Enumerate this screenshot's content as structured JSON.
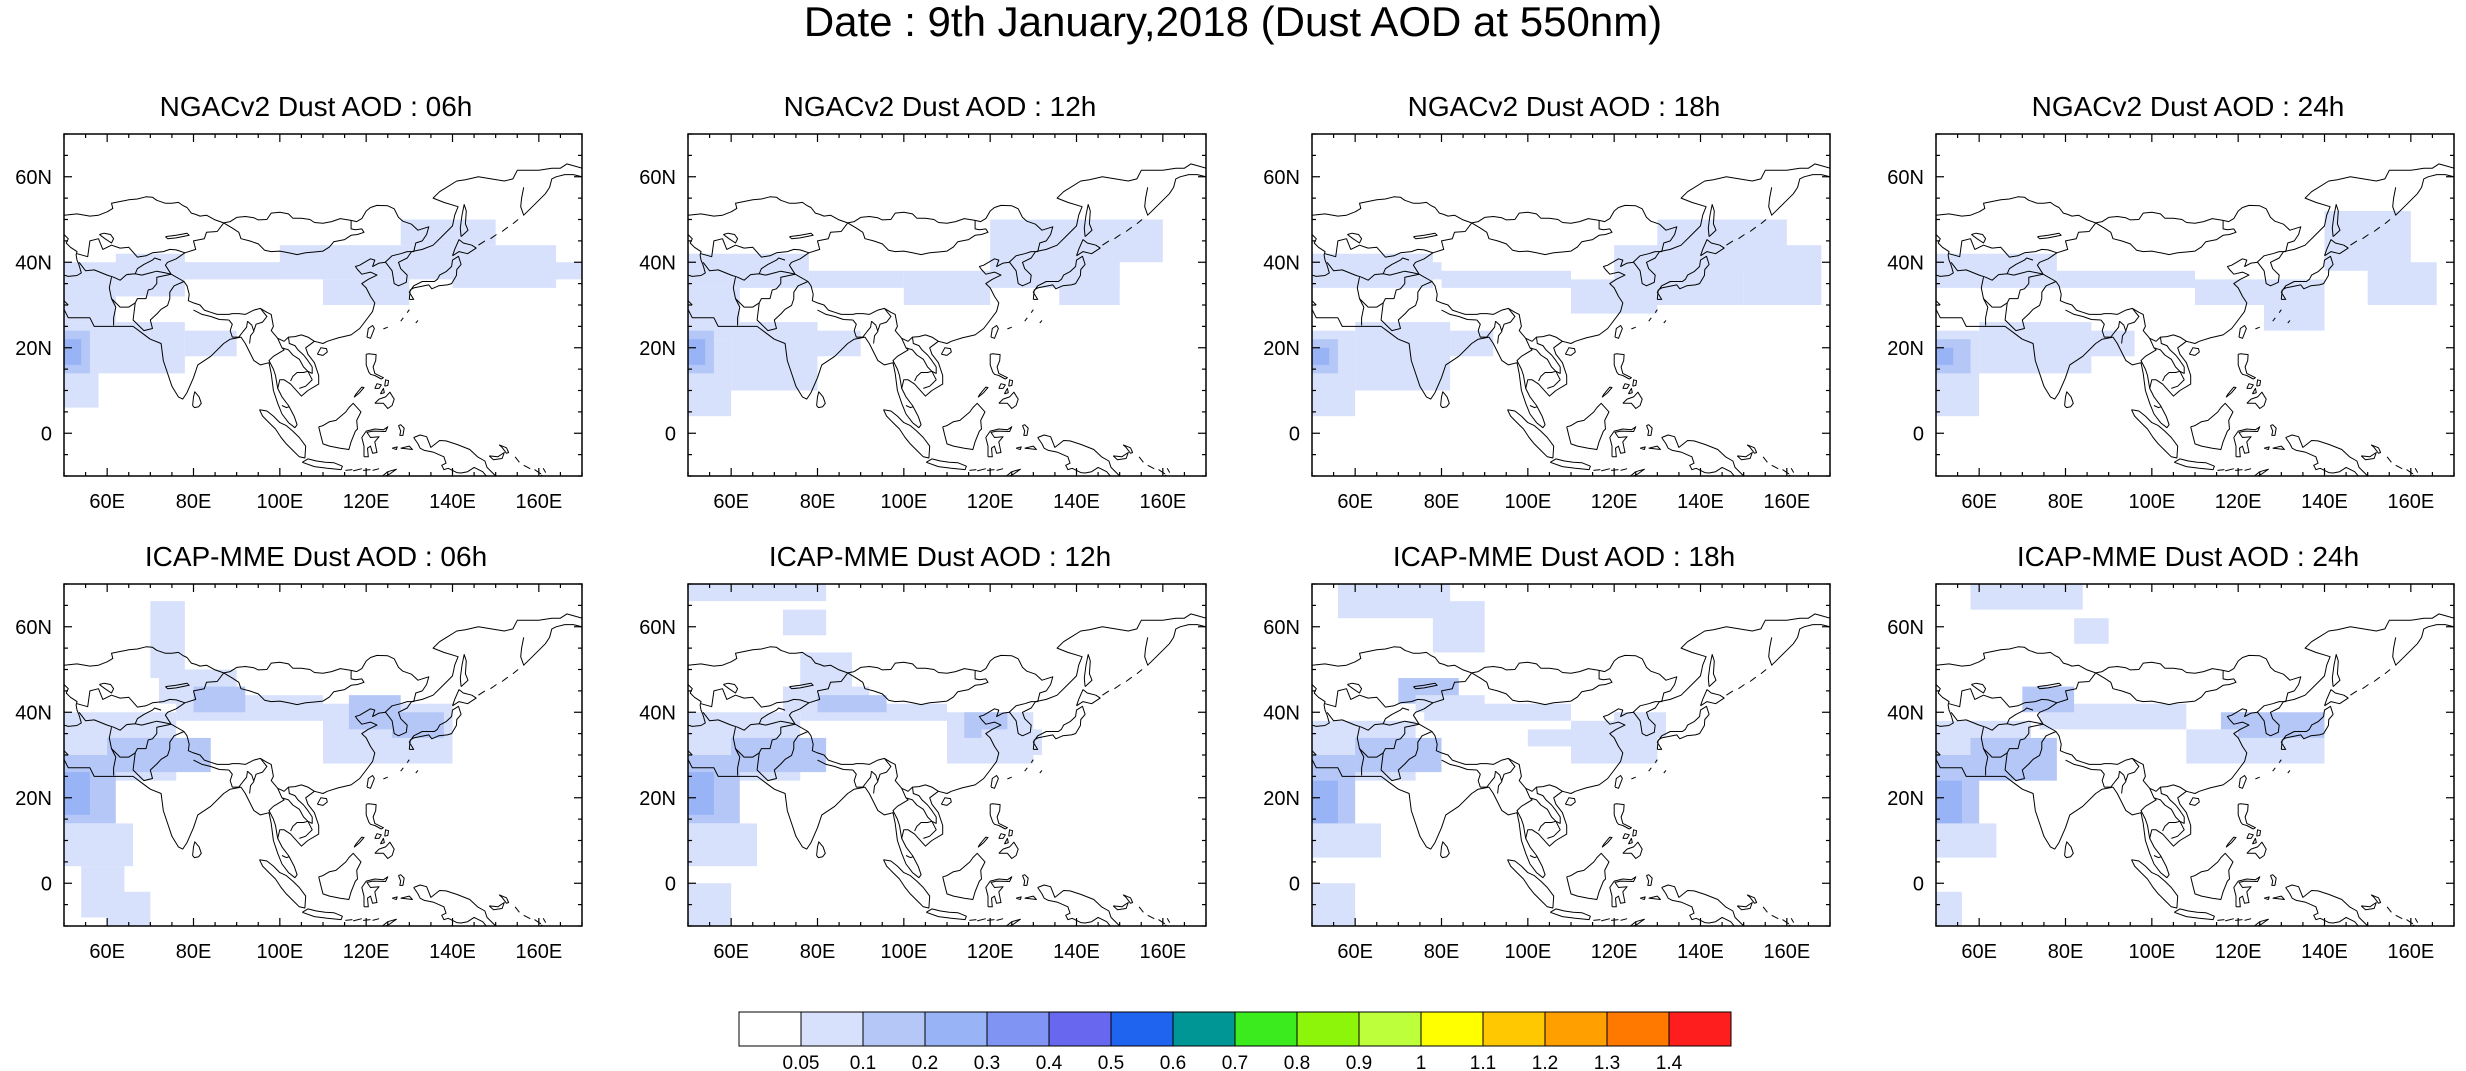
{
  "title": "Date : 9th January,2018 (Dust AOD at 550nm)",
  "map_extent": {
    "lon": [
      50,
      170
    ],
    "lat": [
      -10,
      70
    ]
  },
  "x_ticks": [
    {
      "lon": 60,
      "label": "60E"
    },
    {
      "lon": 80,
      "label": "80E"
    },
    {
      "lon": 100,
      "label": "100E"
    },
    {
      "lon": 120,
      "label": "120E"
    },
    {
      "lon": 140,
      "label": "140E"
    },
    {
      "lon": 160,
      "label": "160E"
    }
  ],
  "y_ticks": [
    {
      "lat": 0,
      "label": "0"
    },
    {
      "lat": 20,
      "label": "20N"
    },
    {
      "lat": 40,
      "label": "40N"
    },
    {
      "lat": 60,
      "label": "60N"
    }
  ],
  "panels": [
    {
      "title": "NGACv2 Dust AOD : 06h",
      "model": "ngac"
    },
    {
      "title": "NGACv2 Dust AOD : 12h",
      "model": "ngac"
    },
    {
      "title": "NGACv2 Dust AOD : 18h",
      "model": "ngac"
    },
    {
      "title": "NGACv2 Dust AOD : 24h",
      "model": "ngac"
    },
    {
      "title": "ICAP-MME Dust AOD : 06h",
      "model": "icap"
    },
    {
      "title": "ICAP-MME Dust AOD : 12h",
      "model": "icap"
    },
    {
      "title": "ICAP-MME Dust AOD : 18h",
      "model": "icap"
    },
    {
      "title": "ICAP-MME Dust AOD : 24h",
      "model": "icap"
    }
  ],
  "colorbar": {
    "labels": [
      "0.05",
      "0.1",
      "0.2",
      "0.3",
      "0.4",
      "0.5",
      "0.6",
      "0.7",
      "0.8",
      "0.9",
      "1",
      "1.1",
      "1.2",
      "1.3",
      "1.4"
    ],
    "colors": [
      "#ffffff",
      "#d7e1fb",
      "#b5c7f7",
      "#98b3f6",
      "#7f94f3",
      "#6767f0",
      "#1e64ef",
      "#009696",
      "#3ceb1e",
      "#8cf50a",
      "#beff3c",
      "#ffff00",
      "#ffc800",
      "#ffa000",
      "#ff7800",
      "#ff1e1e"
    ]
  },
  "dust_levels": {
    "l1": "#d7e1fb",
    "l2": "#b5c7f7",
    "l3": "#98b3f6"
  }
}
